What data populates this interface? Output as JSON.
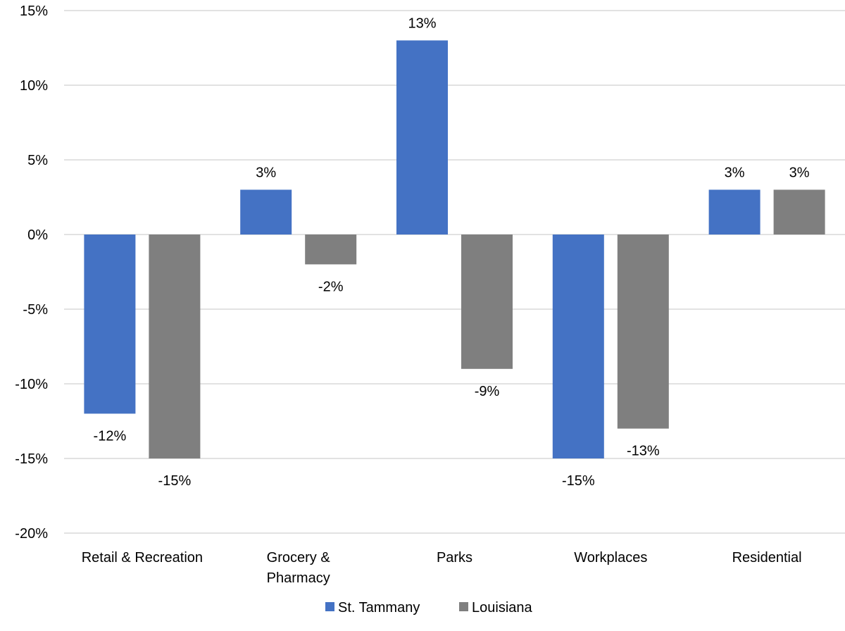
{
  "chart_data": {
    "type": "bar",
    "title": "",
    "xlabel": "",
    "ylabel": "",
    "categories": [
      "Retail & Recreation",
      "Grocery & Pharmacy",
      "Parks",
      "Workplaces",
      "Residential"
    ],
    "category_lines": [
      [
        "Retail & Recreation"
      ],
      [
        "Grocery &",
        "Pharmacy"
      ],
      [
        "Parks"
      ],
      [
        "Workplaces"
      ],
      [
        "Residential"
      ]
    ],
    "series": [
      {
        "name": "St. Tammany",
        "color": "#4472C4",
        "values": [
          -12,
          3,
          13,
          -15,
          3
        ],
        "labels": [
          "-12%",
          "3%",
          "13%",
          "-15%",
          "3%"
        ]
      },
      {
        "name": "Louisiana",
        "color": "#7F7F7F",
        "values": [
          -15,
          -2,
          -9,
          -13,
          3
        ],
        "labels": [
          "-15%",
          "-2%",
          "-9%",
          "-13%",
          "3%"
        ]
      }
    ],
    "ylim": [
      -20,
      15
    ],
    "yticks": [
      15,
      10,
      5,
      0,
      -5,
      -10,
      -15,
      -20
    ],
    "ytick_labels": [
      "15%",
      "10%",
      "5%",
      "0%",
      "-5%",
      "-10%",
      "-15%",
      "-20%"
    ],
    "grid": true,
    "legend": "bottom"
  }
}
